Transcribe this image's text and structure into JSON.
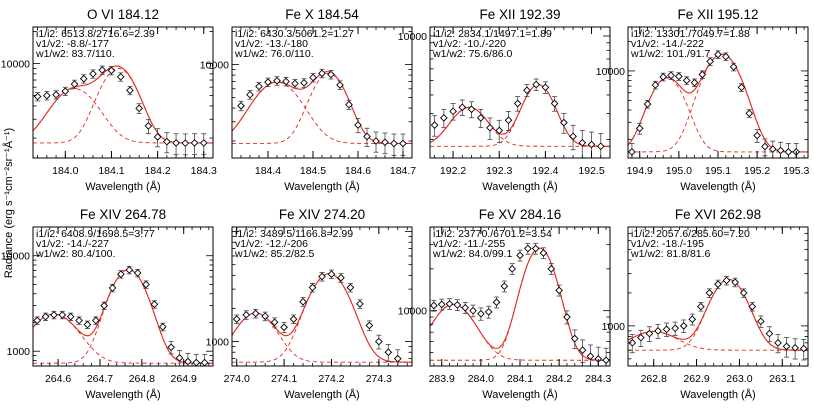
{
  "figure": {
    "ylabel": "Radiance (erg s⁻¹cm⁻²sr⁻¹Å⁻¹)",
    "colors": {
      "fit": "#e8261c",
      "component": "#e8261c",
      "data": "#000000"
    }
  },
  "chart_data": [
    {
      "type": "line",
      "title": "O VI 184.12",
      "xlabel": "Wavelength (Å)",
      "annotation": [
        "i1/i2:  6513.8/2716.6=2.39",
        "v1/v2:  -8.8/-177",
        "w1/w2: 83.7/110."
      ],
      "xlim": [
        183.93,
        184.32
      ],
      "ylim": [
        1300,
        22000
      ],
      "log_y": true,
      "xticks": [
        "184.0",
        "184.1",
        "184.2",
        "184.3"
      ],
      "xtick_values": [
        184.0,
        184.1,
        184.2,
        184.3
      ],
      "yticks": [
        "10000"
      ],
      "ytick_values": [
        10000
      ],
      "baseline": 1800,
      "components": [
        {
          "amp": 7200,
          "center": 184.115,
          "sigma": 0.036
        },
        {
          "amp": 4000,
          "center": 184.02,
          "sigma": 0.045
        }
      ],
      "x": [
        183.94,
        183.96,
        183.98,
        184.0,
        184.02,
        184.04,
        184.06,
        184.08,
        184.1,
        184.12,
        184.14,
        184.16,
        184.18,
        184.2,
        184.22,
        184.24,
        184.26,
        184.28,
        184.3
      ],
      "y": [
        4900,
        5000,
        5100,
        5500,
        6400,
        7200,
        8000,
        8700,
        8600,
        7500,
        5600,
        3800,
        2600,
        2050,
        1850,
        1800,
        1790,
        1800,
        1800
      ]
    },
    {
      "type": "line",
      "title": "Fe X 184.54",
      "xlabel": "Wavelength (Å)",
      "annotation": [
        "i1/i2:  6430.3/5061.2=1.27",
        "v1/v2:  -13./-180",
        "w1/w2: 76.0/110."
      ],
      "xlim": [
        184.32,
        184.72
      ],
      "ylim": [
        1400,
        22000
      ],
      "log_y": true,
      "xticks": [
        "184.4",
        "184.5",
        "184.6",
        "184.7"
      ],
      "xtick_values": [
        184.4,
        184.5,
        184.6,
        184.7
      ],
      "yticks": [
        "10000"
      ],
      "ytick_values": [
        10000
      ],
      "baseline": 1900,
      "components": [
        {
          "amp": 6400,
          "center": 184.535,
          "sigma": 0.035
        },
        {
          "amp": 5000,
          "center": 184.42,
          "sigma": 0.048
        }
      ],
      "x": [
        184.34,
        184.36,
        184.38,
        184.4,
        184.42,
        184.44,
        184.46,
        184.48,
        184.5,
        184.52,
        184.54,
        184.56,
        184.58,
        184.6,
        184.62,
        184.64,
        184.66,
        184.68,
        184.7
      ],
      "y": [
        4200,
        5300,
        6300,
        6900,
        7100,
        7000,
        6700,
        6800,
        7600,
        8300,
        8100,
        6500,
        4300,
        2800,
        2200,
        2000,
        1950,
        1900,
        1900
      ]
    },
    {
      "type": "line",
      "title": "Fe XII 192.39",
      "xlabel": "Wavelength (Å)",
      "annotation": [
        "i1/i2:  2834.1/1497.1=1.89",
        "v1/v2:  -10./-220",
        "w1/w2: 75.6/86.0"
      ],
      "xlim": [
        192.15,
        192.54
      ],
      "ylim": [
        1500,
        11500
      ],
      "log_y": true,
      "xticks": [
        "192.2",
        "192.3",
        "192.4",
        "192.5"
      ],
      "xtick_values": [
        192.2,
        192.3,
        192.4,
        192.5
      ],
      "yticks": [
        "10000"
      ],
      "ytick_values": [
        10000
      ],
      "baseline": 1800,
      "components": [
        {
          "amp": 2900,
          "center": 192.385,
          "sigma": 0.032
        },
        {
          "amp": 1500,
          "center": 192.235,
          "sigma": 0.037
        }
      ],
      "x": [
        192.16,
        192.18,
        192.2,
        192.22,
        192.24,
        192.26,
        192.28,
        192.3,
        192.32,
        192.34,
        192.36,
        192.38,
        192.4,
        192.42,
        192.44,
        192.46,
        192.48,
        192.5,
        192.52
      ],
      "y": [
        2500,
        2800,
        3100,
        3300,
        3200,
        2800,
        2400,
        2300,
        2700,
        3500,
        4300,
        4700,
        4500,
        3500,
        2600,
        2100,
        1900,
        1850,
        1800
      ]
    },
    {
      "type": "line",
      "title": "Fe XII 195.12",
      "xlabel": "Wavelength (Å)",
      "annotation": [
        "i1/i2:  13301./7049.7=1.88",
        "v1/v2:  -14./-222",
        "w1/w2: 101./91.7"
      ],
      "xlim": [
        194.87,
        195.33
      ],
      "ylim": [
        1300,
        28000
      ],
      "log_y": true,
      "xticks": [
        "194.9",
        "195.0",
        "195.1",
        "195.2",
        "195.3"
      ],
      "xtick_values": [
        194.9,
        195.0,
        195.1,
        195.2,
        195.3
      ],
      "yticks": [
        "10000"
      ],
      "ytick_values": [
        10000
      ],
      "baseline": 1500,
      "components": [
        {
          "amp": 13300,
          "center": 195.11,
          "sigma": 0.043
        },
        {
          "amp": 7000,
          "center": 194.97,
          "sigma": 0.039
        }
      ],
      "x": [
        194.88,
        194.9,
        194.92,
        194.94,
        194.96,
        194.98,
        195.0,
        195.02,
        195.04,
        195.06,
        195.08,
        195.1,
        195.12,
        195.14,
        195.16,
        195.18,
        195.2,
        195.22,
        195.24,
        195.26,
        195.28,
        195.3
      ],
      "y": [
        1500,
        2600,
        4600,
        7200,
        8700,
        9000,
        8800,
        8000,
        7600,
        9200,
        12500,
        14700,
        14000,
        11000,
        6800,
        3700,
        2200,
        1700,
        1600,
        1550,
        1500,
        1500
      ]
    },
    {
      "type": "line",
      "title": "Fe XIV 264.78",
      "xlabel": "Wavelength (Å)",
      "annotation": [
        "i1/i2:  6408.9/1698.5=3.77",
        "v1/v2:  -14./-227",
        "w1/w2: 80.4/100."
      ],
      "xlim": [
        264.54,
        264.97
      ],
      "ylim": [
        700,
        20000
      ],
      "log_y": true,
      "xticks": [
        "264.6",
        "264.7",
        "264.8",
        "264.9"
      ],
      "xtick_values": [
        264.6,
        264.7,
        264.8,
        264.9
      ],
      "yticks": [
        "1000",
        "10000"
      ],
      "ytick_values": [
        1000,
        10000
      ],
      "baseline": 750,
      "components": [
        {
          "amp": 6400,
          "center": 264.768,
          "sigma": 0.038
        },
        {
          "amp": 1700,
          "center": 264.59,
          "sigma": 0.05
        }
      ],
      "x": [
        264.55,
        264.57,
        264.59,
        264.61,
        264.63,
        264.65,
        264.67,
        264.69,
        264.71,
        264.73,
        264.75,
        264.77,
        264.79,
        264.81,
        264.83,
        264.85,
        264.87,
        264.89,
        264.91,
        264.93,
        264.95
      ],
      "y": [
        2100,
        2300,
        2400,
        2400,
        2300,
        2100,
        1900,
        2100,
        3000,
        4600,
        6400,
        7100,
        6600,
        5000,
        3100,
        1800,
        1100,
        850,
        780,
        760,
        760
      ]
    },
    {
      "type": "line",
      "title": "Fe XIV 274.20",
      "xlabel": "Wavelength (Å)",
      "annotation": [
        "i1/i2:  3489.5/1166.8=2.99",
        "v1/v2:  -12./-206",
        "w1/w2: 85.2/82.5"
      ],
      "xlim": [
        273.99,
        274.37
      ],
      "ylim": [
        600,
        11000
      ],
      "log_y": true,
      "xticks": [
        "274.0",
        "274.1",
        "274.2",
        "274.3"
      ],
      "xtick_values": [
        274.0,
        274.1,
        274.2,
        274.3
      ],
      "yticks": [
        "1000"
      ],
      "ytick_values": [
        1000
      ],
      "baseline": 650,
      "components": [
        {
          "amp": 3490,
          "center": 274.195,
          "sigma": 0.038
        },
        {
          "amp": 1170,
          "center": 274.04,
          "sigma": 0.038
        }
      ],
      "x": [
        274.0,
        274.02,
        274.04,
        274.06,
        274.08,
        274.1,
        274.12,
        274.14,
        274.16,
        274.18,
        274.2,
        274.22,
        274.24,
        274.26,
        274.28,
        274.3,
        274.32,
        274.34
      ],
      "y": [
        1600,
        1750,
        1800,
        1700,
        1500,
        1350,
        1600,
        2300,
        3100,
        3900,
        4100,
        3800,
        3100,
        2200,
        1400,
        1000,
        800,
        700
      ]
    },
    {
      "type": "line",
      "title": "Fe XV 284.16",
      "xlabel": "Wavelength (Å)",
      "annotation": [
        "i1/i2:  23770./6701.2=3.54",
        "v1/v2:  -11./-255",
        "w1/w2: 84.0/99.1"
      ],
      "xlim": [
        283.87,
        284.33
      ],
      "ylim": [
        4000,
        40000
      ],
      "log_y": true,
      "xticks": [
        "283.9",
        "284.0",
        "284.1",
        "284.2",
        "284.3"
      ],
      "xtick_values": [
        283.9,
        284.0,
        284.1,
        284.2,
        284.3
      ],
      "yticks": [
        "10000"
      ],
      "ytick_values": [
        10000
      ],
      "baseline": 4400,
      "components": [
        {
          "amp": 23770,
          "center": 284.15,
          "sigma": 0.038
        },
        {
          "amp": 6700,
          "center": 283.93,
          "sigma": 0.05
        }
      ],
      "x": [
        283.88,
        283.9,
        283.92,
        283.94,
        283.96,
        283.98,
        284.0,
        284.02,
        284.04,
        284.06,
        284.08,
        284.1,
        284.12,
        284.14,
        284.16,
        284.18,
        284.2,
        284.22,
        284.24,
        284.26,
        284.28,
        284.3,
        284.32
      ],
      "y": [
        10900,
        11100,
        11200,
        11000,
        10500,
        10000,
        9500,
        9800,
        11500,
        15000,
        20000,
        25000,
        28000,
        28000,
        26000,
        20000,
        14000,
        9000,
        6300,
        5200,
        4700,
        4500,
        4400
      ]
    },
    {
      "type": "line",
      "title": "Fe XVI 262.98",
      "xlabel": "Wavelength (Å)",
      "annotation": [
        "i1/i2:  2057.6/285.60=7.20",
        "v1/v2:  -18./-195",
        "w1/w2: 81.8/81.6"
      ],
      "xlim": [
        262.74,
        263.16
      ],
      "ylim": [
        430,
        8000
      ],
      "log_y": true,
      "xticks": [
        "262.8",
        "262.9",
        "263.0",
        "263.1"
      ],
      "xtick_values": [
        262.8,
        262.9,
        263.0,
        263.1
      ],
      "yticks": [
        "1000"
      ],
      "ytick_values": [
        1000
      ],
      "baseline": 600,
      "components": [
        {
          "amp": 2060,
          "center": 262.975,
          "sigma": 0.038
        },
        {
          "amp": 290,
          "center": 262.8,
          "sigma": 0.05
        }
      ],
      "x": [
        262.75,
        262.77,
        262.79,
        262.81,
        262.83,
        262.85,
        262.87,
        262.89,
        262.91,
        262.93,
        262.95,
        262.97,
        262.99,
        263.01,
        263.03,
        263.05,
        263.07,
        263.09,
        263.11,
        263.13,
        263.15
      ],
      "y": [
        700,
        780,
        850,
        900,
        930,
        950,
        1000,
        1150,
        1500,
        2000,
        2400,
        2600,
        2500,
        2000,
        1500,
        1100,
        850,
        700,
        650,
        630,
        620
      ]
    }
  ]
}
